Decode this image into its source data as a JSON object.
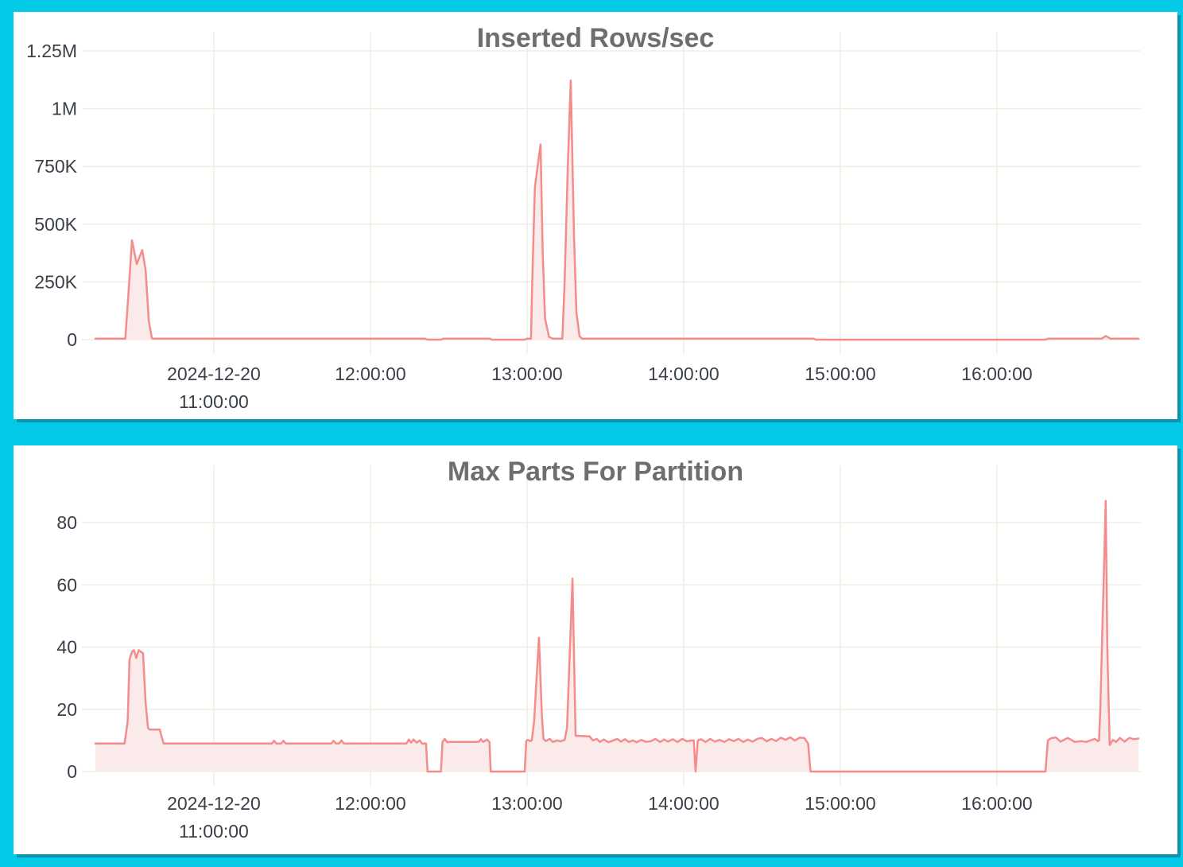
{
  "page": {
    "background_color": "#04cae8",
    "panel_color": "#ffffff",
    "panel_shadow_color": "#0a93ad"
  },
  "chart_data": [
    {
      "id": "inserted-rows",
      "type": "area",
      "title": "Inserted Rows/sec",
      "xlabel": "",
      "ylabel": "",
      "legend": "none",
      "grid": true,
      "title_color": "#6e6e6e",
      "line_color": "#f48c8c",
      "fill_color": "#fbeaea",
      "grid_color": "#f0eee3",
      "tick_color": "#3b4048",
      "x_range_hours": [
        10.244,
        16.904
      ],
      "ylim": [
        0,
        1250000
      ],
      "y_ticks": [
        {
          "value": 0,
          "label": "0"
        },
        {
          "value": 250000,
          "label": "250K"
        },
        {
          "value": 500000,
          "label": "500K"
        },
        {
          "value": 750000,
          "label": "750K"
        },
        {
          "value": 1000000,
          "label": "1M"
        },
        {
          "value": 1250000,
          "label": "1.25M"
        }
      ],
      "x_ticks": [
        {
          "hour": 11,
          "lines": [
            "2024-12-20",
            "11:00:00"
          ]
        },
        {
          "hour": 12,
          "lines": [
            "12:00:00"
          ]
        },
        {
          "hour": 13,
          "lines": [
            "13:00:00"
          ]
        },
        {
          "hour": 14,
          "lines": [
            "14:00:00"
          ]
        },
        {
          "hour": 15,
          "lines": [
            "15:00:00"
          ]
        },
        {
          "hour": 16,
          "lines": [
            "16:00:00"
          ]
        }
      ],
      "points": [
        [
          10.244,
          4000
        ],
        [
          10.435,
          4000
        ],
        [
          10.45,
          150000
        ],
        [
          10.4775,
          430000
        ],
        [
          10.508,
          327000
        ],
        [
          10.543,
          388000
        ],
        [
          10.565,
          300000
        ],
        [
          10.585,
          80000
        ],
        [
          10.605,
          6000
        ],
        [
          10.62,
          4000
        ],
        [
          12.35,
          4000
        ],
        [
          12.365,
          0
        ],
        [
          12.45,
          0
        ],
        [
          12.465,
          4000
        ],
        [
          12.765,
          4000
        ],
        [
          12.775,
          0
        ],
        [
          12.985,
          0
        ],
        [
          13.0,
          4000
        ],
        [
          13.025,
          4000
        ],
        [
          13.035,
          300000
        ],
        [
          13.05,
          660000
        ],
        [
          13.086,
          845000
        ],
        [
          13.1,
          380000
        ],
        [
          13.115,
          90000
        ],
        [
          13.14,
          12000
        ],
        [
          13.165,
          4000
        ],
        [
          13.225,
          4000
        ],
        [
          13.24,
          250000
        ],
        [
          13.26,
          750000
        ],
        [
          13.279,
          1122000
        ],
        [
          13.3,
          450000
        ],
        [
          13.315,
          120000
        ],
        [
          13.335,
          15000
        ],
        [
          13.35,
          4000
        ],
        [
          14.83,
          4000
        ],
        [
          14.845,
          0
        ],
        [
          16.31,
          0
        ],
        [
          16.325,
          4000
        ],
        [
          16.67,
          4000
        ],
        [
          16.695,
          16000
        ],
        [
          16.725,
          4000
        ],
        [
          16.904,
          4000
        ]
      ]
    },
    {
      "id": "max-parts",
      "type": "area",
      "title": "Max Parts For Partition",
      "xlabel": "",
      "ylabel": "",
      "legend": "none",
      "grid": true,
      "title_color": "#6e6e6e",
      "line_color": "#f48c8c",
      "fill_color": "#fbeaea",
      "grid_color": "#f0eee3",
      "tick_color": "#3b4048",
      "x_range_hours": [
        10.244,
        16.904
      ],
      "ylim": [
        0,
        80
      ],
      "y_ticks": [
        {
          "value": 0,
          "label": "0"
        },
        {
          "value": 20,
          "label": "20"
        },
        {
          "value": 40,
          "label": "40"
        },
        {
          "value": 60,
          "label": "60"
        },
        {
          "value": 80,
          "label": "80"
        }
      ],
      "x_ticks": [
        {
          "hour": 11,
          "lines": [
            "2024-12-20",
            "11:00:00"
          ]
        },
        {
          "hour": 12,
          "lines": [
            "12:00:00"
          ]
        },
        {
          "hour": 13,
          "lines": [
            "13:00:00"
          ]
        },
        {
          "hour": 14,
          "lines": [
            "14:00:00"
          ]
        },
        {
          "hour": 15,
          "lines": [
            "15:00:00"
          ]
        },
        {
          "hour": 16,
          "lines": [
            "16:00:00"
          ]
        }
      ],
      "points": [
        [
          10.244,
          9
        ],
        [
          10.43,
          9
        ],
        [
          10.45,
          16
        ],
        [
          10.462,
          36
        ],
        [
          10.4775,
          38.5
        ],
        [
          10.49,
          39
        ],
        [
          10.505,
          36.5
        ],
        [
          10.52,
          39
        ],
        [
          10.548,
          38
        ],
        [
          10.565,
          22
        ],
        [
          10.58,
          14
        ],
        [
          10.59,
          13.5
        ],
        [
          10.655,
          13.5
        ],
        [
          10.668,
          11
        ],
        [
          10.68,
          9
        ],
        [
          11.37,
          9
        ],
        [
          11.385,
          9.9
        ],
        [
          11.4,
          9
        ],
        [
          11.43,
          9
        ],
        [
          11.445,
          9.9
        ],
        [
          11.46,
          9
        ],
        [
          11.75,
          9
        ],
        [
          11.765,
          9.9
        ],
        [
          11.78,
          9
        ],
        [
          11.8,
          9
        ],
        [
          11.815,
          10
        ],
        [
          11.83,
          9
        ],
        [
          12.23,
          9
        ],
        [
          12.245,
          10.3
        ],
        [
          12.26,
          9.3
        ],
        [
          12.275,
          10.3
        ],
        [
          12.295,
          9.3
        ],
        [
          12.315,
          10
        ],
        [
          12.33,
          9
        ],
        [
          12.355,
          9
        ],
        [
          12.365,
          0
        ],
        [
          12.45,
          0
        ],
        [
          12.46,
          9.5
        ],
        [
          12.475,
          10.5
        ],
        [
          12.49,
          9.4
        ],
        [
          12.51,
          9.5
        ],
        [
          12.69,
          9.5
        ],
        [
          12.705,
          10.4
        ],
        [
          12.72,
          9.5
        ],
        [
          12.745,
          10.3
        ],
        [
          12.76,
          9.4
        ],
        [
          12.768,
          0
        ],
        [
          12.985,
          0
        ],
        [
          12.995,
          9.8
        ],
        [
          13.005,
          10.2
        ],
        [
          13.02,
          9.8
        ],
        [
          13.03,
          10
        ],
        [
          13.045,
          16
        ],
        [
          13.076,
          43
        ],
        [
          13.095,
          18
        ],
        [
          13.105,
          10.5
        ],
        [
          13.12,
          9.8
        ],
        [
          13.145,
          10.5
        ],
        [
          13.165,
          9.5
        ],
        [
          13.19,
          10
        ],
        [
          13.215,
          9.7
        ],
        [
          13.24,
          10.2
        ],
        [
          13.255,
          14
        ],
        [
          13.29,
          62
        ],
        [
          13.31,
          11.5
        ],
        [
          13.4,
          11.3
        ],
        [
          13.42,
          10
        ],
        [
          13.445,
          10.5
        ],
        [
          13.465,
          9.5
        ],
        [
          13.49,
          10.3
        ],
        [
          13.52,
          9.4
        ],
        [
          13.55,
          10
        ],
        [
          13.575,
          10.5
        ],
        [
          13.6,
          9.6
        ],
        [
          13.625,
          10.4
        ],
        [
          13.65,
          9.5
        ],
        [
          13.675,
          10
        ],
        [
          13.7,
          9.4
        ],
        [
          13.73,
          10.2
        ],
        [
          13.76,
          9.5
        ],
        [
          13.79,
          9.8
        ],
        [
          13.82,
          10.5
        ],
        [
          13.85,
          9.5
        ],
        [
          13.875,
          10.3
        ],
        [
          13.9,
          9.6
        ],
        [
          13.93,
          10.4
        ],
        [
          13.96,
          9.5
        ],
        [
          13.99,
          10.5
        ],
        [
          14.02,
          9.7
        ],
        [
          14.05,
          10
        ],
        [
          14.065,
          10
        ],
        [
          14.076,
          0
        ],
        [
          14.09,
          10
        ],
        [
          14.11,
          10.4
        ],
        [
          14.14,
          9.5
        ],
        [
          14.17,
          10.5
        ],
        [
          14.2,
          9.6
        ],
        [
          14.23,
          10.2
        ],
        [
          14.26,
          9.5
        ],
        [
          14.29,
          10.4
        ],
        [
          14.32,
          9.8
        ],
        [
          14.35,
          10.5
        ],
        [
          14.38,
          9.5
        ],
        [
          14.41,
          10.3
        ],
        [
          14.44,
          9.6
        ],
        [
          14.47,
          10.5
        ],
        [
          14.5,
          10.8
        ],
        [
          14.53,
          9.7
        ],
        [
          14.56,
          10.5
        ],
        [
          14.59,
          9.8
        ],
        [
          14.62,
          10.9
        ],
        [
          14.65,
          10.2
        ],
        [
          14.68,
          11
        ],
        [
          14.71,
          10
        ],
        [
          14.74,
          10.9
        ],
        [
          14.77,
          10.8
        ],
        [
          14.795,
          9
        ],
        [
          14.81,
          0
        ],
        [
          16.31,
          0
        ],
        [
          16.325,
          10
        ],
        [
          16.345,
          10.7
        ],
        [
          16.376,
          11
        ],
        [
          16.407,
          9.6
        ],
        [
          16.452,
          10.8
        ],
        [
          16.498,
          9.5
        ],
        [
          16.538,
          9.8
        ],
        [
          16.569,
          9.5
        ],
        [
          16.625,
          10.5
        ],
        [
          16.645,
          9.8
        ],
        [
          16.652,
          10
        ],
        [
          16.66,
          20
        ],
        [
          16.695,
          87
        ],
        [
          16.705,
          40
        ],
        [
          16.72,
          8.5
        ],
        [
          16.74,
          10.2
        ],
        [
          16.76,
          9.5
        ],
        [
          16.785,
          10.8
        ],
        [
          16.815,
          9.6
        ],
        [
          16.845,
          10.8
        ],
        [
          16.875,
          10.4
        ],
        [
          16.904,
          10.6
        ]
      ]
    }
  ]
}
